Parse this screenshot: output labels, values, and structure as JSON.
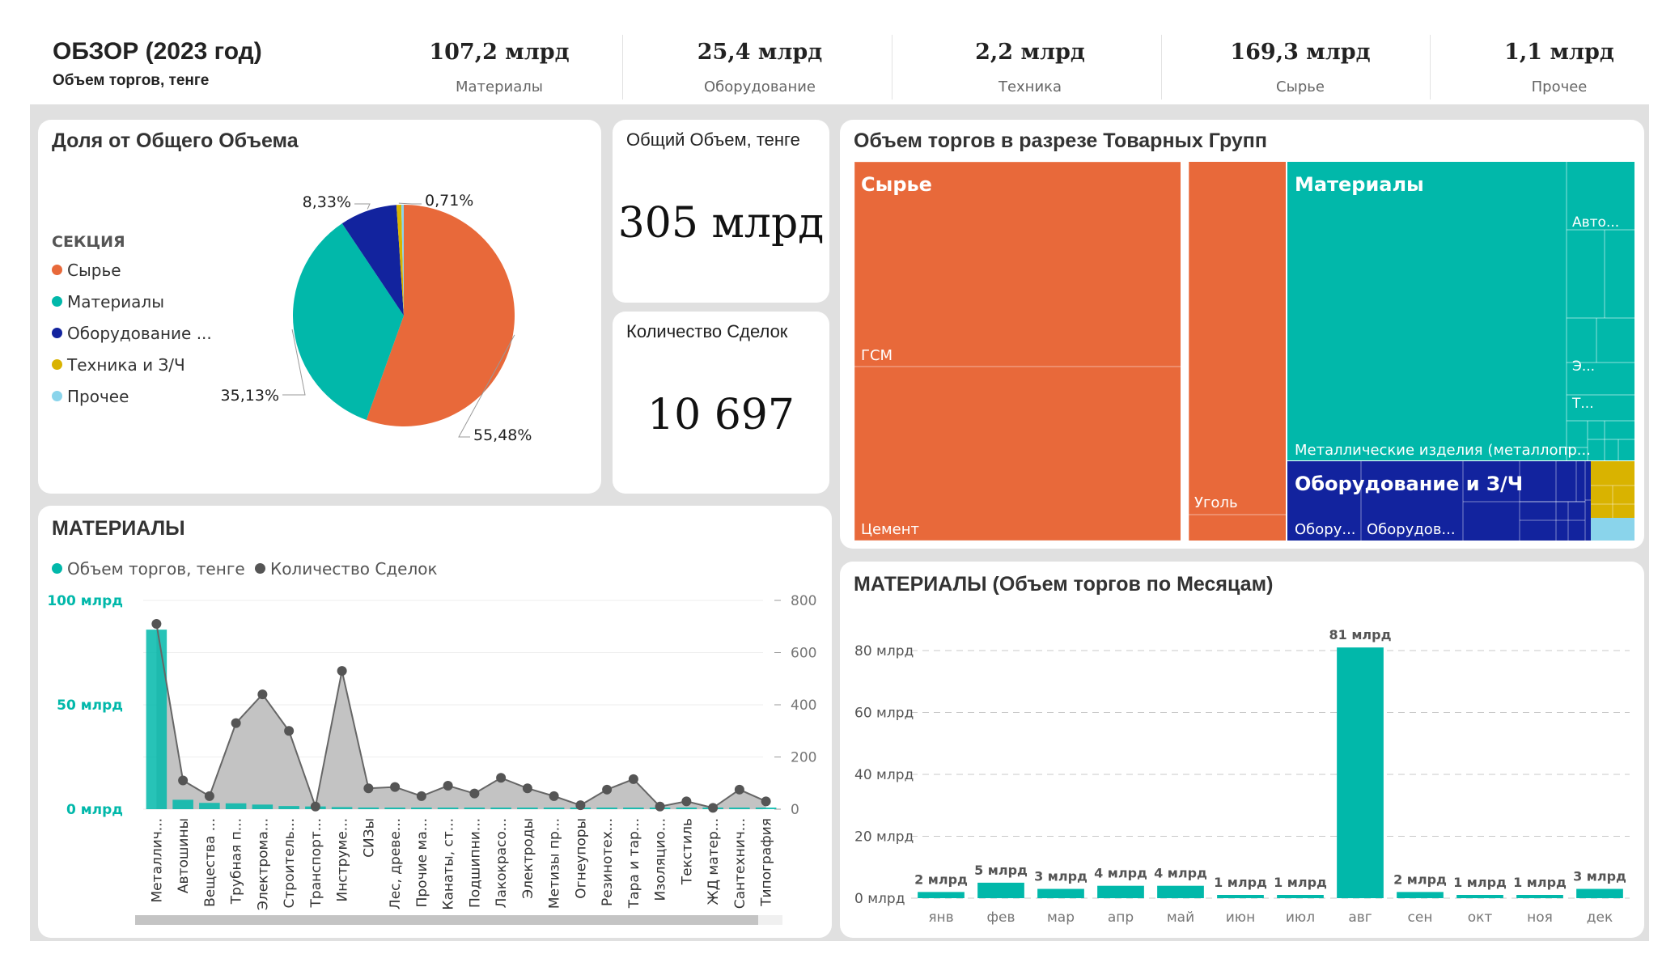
{
  "header": {
    "title": "ОБЗОР (2023 год)",
    "subtitle": "Объем торгов, тенге",
    "kpis": [
      {
        "value": "107,2 млрд",
        "label": "Материалы"
      },
      {
        "value": "25,4 млрд",
        "label": "Оборудование"
      },
      {
        "value": "2,2 млрд",
        "label": "Техника"
      },
      {
        "value": "169,3 млрд",
        "label": "Сырье"
      },
      {
        "value": "1,1 млрд",
        "label": "Прочее"
      }
    ]
  },
  "colors": {
    "syrye": "#E8693A",
    "materials": "#01B8AA",
    "equipment": "#12239E",
    "tech": "#D9B300",
    "other": "#8AD4EB",
    "line": "#555555",
    "area": "#bdbdbd"
  },
  "share": {
    "title": "Доля от Общего Объема",
    "legend_title": "СЕКЦИЯ",
    "legend": [
      "Сырье",
      "Материалы",
      "Оборудование ...",
      "Техника и З/Ч",
      "Прочее"
    ],
    "slice_labels": [
      "55,48%",
      "35,13%",
      "8,33%",
      "0,71%"
    ]
  },
  "total": {
    "caption": "Общий Объем, тенге",
    "value": "305 млрд"
  },
  "deals": {
    "caption": "Количество Сделок",
    "value": "10 697"
  },
  "treemap": {
    "title": "Объем торгов в разрезе Товарных Групп",
    "labels": {
      "syrye": "Сырье",
      "gsm": "ГСМ",
      "cement": "Цемент",
      "coal": "Уголь",
      "materials": "Материалы",
      "auto": "Авто...",
      "e": "Э...",
      "t": "Т...",
      "metal": "Металлические изделия (металлопр...",
      "equipment": "Оборудование и З/Ч",
      "eq1": "Обору...",
      "eq2": "Оборудов..."
    }
  },
  "materials_chart": {
    "title": "МАТЕРИАЛЫ",
    "legend": [
      "Объем торгов, тенге",
      "Количество Сделок"
    ]
  },
  "monthly": {
    "title": "МАТЕРИАЛЫ (Объем торгов по Месяцам)"
  },
  "chart_data": [
    {
      "type": "pie",
      "title": "Доля от Общего Объема",
      "categories": [
        "Сырье",
        "Материалы",
        "Оборудование ...",
        "Техника и З/Ч",
        "Прочее"
      ],
      "values": [
        55.48,
        35.13,
        8.33,
        0.71,
        0.35
      ],
      "labels": [
        "55,48%",
        "35,13%",
        "8,33%",
        "0,71%"
      ]
    },
    {
      "type": "bar",
      "title": "МАТЕРИАЛЫ",
      "categories": [
        "Металлич...",
        "Автошины",
        "Вещества ...",
        "Трубная п...",
        "Электрома...",
        "Строитель...",
        "Транспорт...",
        "Инструме...",
        "СИЗы",
        "Лес, древе...",
        "Прочие ма...",
        "Канаты, ст...",
        "Подшипни...",
        "Лакокрасо...",
        "Электроды",
        "Метизы пр...",
        "Огнеупоры",
        "Резинотех...",
        "Тара и тар...",
        "Изоляцио...",
        "Текстиль",
        "ЖД матер...",
        "Сантехнич...",
        "Типография"
      ],
      "series": [
        {
          "name": "Объем торгов, тенге",
          "values": [
            86,
            4.5,
            3,
            2.8,
            2.2,
            1.5,
            1.3,
            1,
            0.8,
            0.7,
            0.6,
            0.6,
            0.5,
            0.5,
            0.4,
            0.4,
            0.3,
            0.3,
            0.3,
            0.2,
            0.2,
            0.2,
            0.2,
            0.1
          ]
        },
        {
          "name": "Количество Сделок",
          "values": [
            710,
            110,
            50,
            330,
            440,
            300,
            10,
            530,
            80,
            85,
            50,
            90,
            60,
            120,
            80,
            50,
            15,
            75,
            115,
            10,
            30,
            5,
            75,
            30
          ]
        }
      ],
      "y_ticks": [
        "100 млрд",
        "50 млрд",
        "0 млрд"
      ],
      "y2_ticks": [
        "800",
        "600",
        "400",
        "200",
        "0"
      ],
      "ylim": [
        0,
        100
      ],
      "y2lim": [
        0,
        800
      ]
    },
    {
      "type": "bar",
      "title": "МАТЕРИАЛЫ (Объем торгов по Месяцам)",
      "categories": [
        "янв",
        "фев",
        "мар",
        "апр",
        "май",
        "июн",
        "июл",
        "авг",
        "сен",
        "окт",
        "ноя",
        "дек"
      ],
      "values": [
        2,
        5,
        3,
        4,
        4,
        1,
        1,
        81,
        2,
        1,
        1,
        3
      ],
      "data_labels": [
        "2 млрд",
        "5 млрд",
        "3 млрд",
        "4 млрд",
        "4 млрд",
        "1 млрд",
        "1 млрд",
        "81 млрд",
        "2 млрд",
        "1 млрд",
        "1 млрд",
        "3 млрд"
      ],
      "y_ticks": [
        "80 млрд",
        "60 млрд",
        "40 млрд",
        "20 млрд",
        "0 млрд"
      ],
      "ylim": [
        0,
        80
      ]
    }
  ]
}
